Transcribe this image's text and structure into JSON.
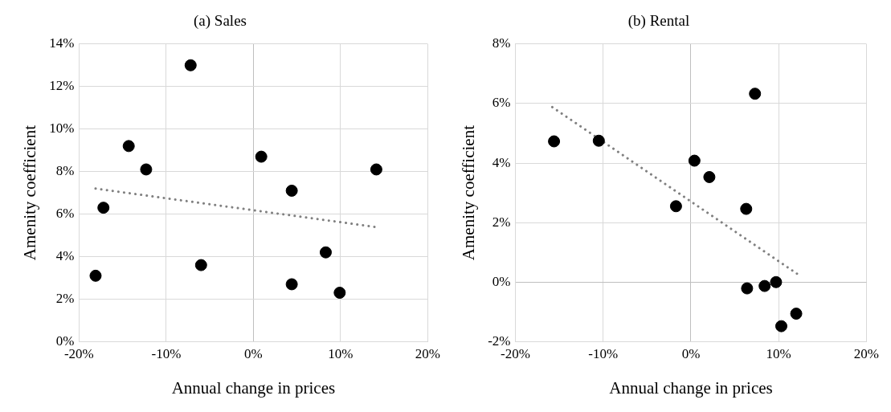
{
  "chart_data": [
    {
      "type": "scatter",
      "title": "(a) Sales",
      "xlabel": "Annual change in prices",
      "ylabel": "Amenity coefficient",
      "xlim": [
        -20,
        20
      ],
      "ylim": [
        0,
        14
      ],
      "xticks": [
        {
          "value": -20,
          "label": "-20%"
        },
        {
          "value": -10,
          "label": "-10%"
        },
        {
          "value": 0,
          "label": "0%"
        },
        {
          "value": 10,
          "label": "10%"
        },
        {
          "value": 20,
          "label": "20%"
        }
      ],
      "yticks": [
        {
          "value": 0,
          "label": "0%"
        },
        {
          "value": 2,
          "label": "2%"
        },
        {
          "value": 4,
          "label": "4%"
        },
        {
          "value": 6,
          "label": "6%"
        },
        {
          "value": 8,
          "label": "8%"
        },
        {
          "value": 10,
          "label": "10%"
        },
        {
          "value": 12,
          "label": "12%"
        },
        {
          "value": 14,
          "label": "14%"
        }
      ],
      "grid": true,
      "series": [
        {
          "type": "scatter",
          "color": "#000000",
          "marker": "circle",
          "x": [
            -18.1,
            -17.2,
            -14.3,
            -12.3,
            -7.2,
            -6.0,
            0.9,
            4.4,
            4.4,
            8.3,
            9.9,
            14.1
          ],
          "values": [
            3.1,
            6.3,
            9.2,
            8.1,
            13.0,
            3.6,
            8.7,
            7.1,
            2.7,
            4.2,
            2.3,
            8.1
          ]
        },
        {
          "type": "line",
          "color": "#808080",
          "marker": "none",
          "line_style": "dotted",
          "x": [
            -18.1,
            13.9
          ],
          "values": [
            7.2,
            5.4
          ]
        }
      ]
    },
    {
      "type": "scatter",
      "title": "(b) Rental",
      "xlabel": "Annual change in prices",
      "ylabel": "Amenity coefficient",
      "xlim": [
        -20,
        20
      ],
      "ylim": [
        -2,
        8
      ],
      "xticks": [
        {
          "value": -20,
          "label": "-20%"
        },
        {
          "value": -10,
          "label": "-10%"
        },
        {
          "value": 0,
          "label": "0%"
        },
        {
          "value": 10,
          "label": "10%"
        },
        {
          "value": 20,
          "label": "20%"
        }
      ],
      "yticks": [
        {
          "value": -2,
          "label": "-2%"
        },
        {
          "value": 0,
          "label": "0%"
        },
        {
          "value": 2,
          "label": "2%"
        },
        {
          "value": 4,
          "label": "4%"
        },
        {
          "value": 6,
          "label": "6%"
        },
        {
          "value": 8,
          "label": "8%"
        }
      ],
      "grid": true,
      "series": [
        {
          "type": "scatter",
          "color": "#000000",
          "marker": "circle",
          "x": [
            -15.6,
            -10.5,
            -1.7,
            0.4,
            2.1,
            6.3,
            7.3,
            6.4,
            8.4,
            9.7,
            10.3,
            12.0
          ],
          "values": [
            4.73,
            4.75,
            2.55,
            4.08,
            3.53,
            2.46,
            6.33,
            -0.21,
            -0.13,
            0.0,
            -1.48,
            -1.06
          ]
        },
        {
          "type": "line",
          "color": "#808080",
          "marker": "none",
          "line_style": "dotted",
          "x": [
            -15.8,
            12.1
          ],
          "values": [
            5.88,
            0.28
          ]
        }
      ]
    }
  ]
}
